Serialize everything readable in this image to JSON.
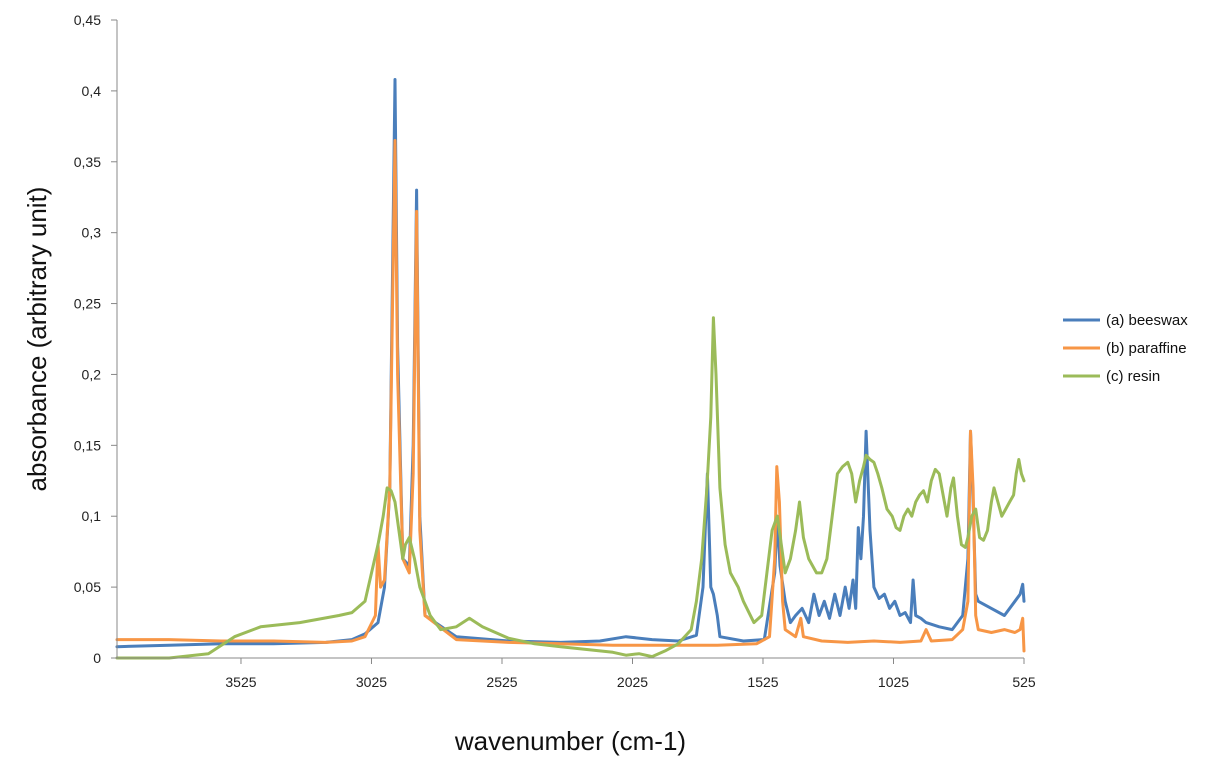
{
  "chart_data": {
    "type": "line",
    "xlabel": "wavenumber (cm-1)",
    "ylabel": "absorbance (arbitrary unit)",
    "xlim": [
      4000,
      525
    ],
    "x_reversed": true,
    "ylim": [
      0,
      0.45
    ],
    "grid": false,
    "legend_position": "right",
    "x_ticks": [
      3525,
      3025,
      2525,
      2025,
      1525,
      1025,
      525
    ],
    "y_ticks": [
      0,
      0.05,
      0.1,
      0.15,
      0.2,
      0.25,
      0.3,
      0.35,
      0.4,
      0.45
    ],
    "y_tick_labels": [
      "0",
      "0,05",
      "0,1",
      "0,15",
      "0,2",
      "0,25",
      "0,3",
      "0,35",
      "0,4",
      "0,45"
    ],
    "series": [
      {
        "name": "(a) beeswax",
        "color": "#4a7ebb",
        "points": [
          [
            4000,
            0.008
          ],
          [
            3800,
            0.009
          ],
          [
            3600,
            0.01
          ],
          [
            3400,
            0.01
          ],
          [
            3200,
            0.011
          ],
          [
            3100,
            0.013
          ],
          [
            3050,
            0.017
          ],
          [
            3000,
            0.025
          ],
          [
            2975,
            0.05
          ],
          [
            2955,
            0.12
          ],
          [
            2935,
            0.408
          ],
          [
            2925,
            0.22
          ],
          [
            2905,
            0.07
          ],
          [
            2880,
            0.065
          ],
          [
            2865,
            0.15
          ],
          [
            2852,
            0.33
          ],
          [
            2840,
            0.1
          ],
          [
            2820,
            0.03
          ],
          [
            2700,
            0.015
          ],
          [
            2500,
            0.012
          ],
          [
            2300,
            0.011
          ],
          [
            2150,
            0.012
          ],
          [
            2050,
            0.015
          ],
          [
            1950,
            0.013
          ],
          [
            1850,
            0.012
          ],
          [
            1780,
            0.016
          ],
          [
            1755,
            0.05
          ],
          [
            1738,
            0.13
          ],
          [
            1725,
            0.05
          ],
          [
            1715,
            0.045
          ],
          [
            1700,
            0.03
          ],
          [
            1690,
            0.015
          ],
          [
            1600,
            0.012
          ],
          [
            1520,
            0.013
          ],
          [
            1480,
            0.06
          ],
          [
            1470,
            0.1
          ],
          [
            1460,
            0.065
          ],
          [
            1440,
            0.04
          ],
          [
            1420,
            0.025
          ],
          [
            1400,
            0.03
          ],
          [
            1375,
            0.035
          ],
          [
            1350,
            0.025
          ],
          [
            1330,
            0.045
          ],
          [
            1310,
            0.03
          ],
          [
            1290,
            0.04
          ],
          [
            1270,
            0.028
          ],
          [
            1250,
            0.045
          ],
          [
            1230,
            0.03
          ],
          [
            1210,
            0.05
          ],
          [
            1195,
            0.035
          ],
          [
            1180,
            0.055
          ],
          [
            1170,
            0.035
          ],
          [
            1160,
            0.092
          ],
          [
            1150,
            0.07
          ],
          [
            1140,
            0.1
          ],
          [
            1130,
            0.16
          ],
          [
            1115,
            0.09
          ],
          [
            1100,
            0.05
          ],
          [
            1080,
            0.042
          ],
          [
            1060,
            0.045
          ],
          [
            1040,
            0.035
          ],
          [
            1020,
            0.04
          ],
          [
            1000,
            0.03
          ],
          [
            980,
            0.032
          ],
          [
            960,
            0.025
          ],
          [
            950,
            0.055
          ],
          [
            940,
            0.03
          ],
          [
            920,
            0.028
          ],
          [
            900,
            0.025
          ],
          [
            850,
            0.022
          ],
          [
            800,
            0.02
          ],
          [
            760,
            0.03
          ],
          [
            740,
            0.07
          ],
          [
            730,
            0.16
          ],
          [
            720,
            0.11
          ],
          [
            710,
            0.045
          ],
          [
            700,
            0.04
          ],
          [
            650,
            0.035
          ],
          [
            600,
            0.03
          ],
          [
            560,
            0.04
          ],
          [
            540,
            0.045
          ],
          [
            530,
            0.052
          ],
          [
            525,
            0.04
          ]
        ]
      },
      {
        "name": "(b) paraffine",
        "color": "#f79646",
        "points": [
          [
            4000,
            0.013
          ],
          [
            3800,
            0.013
          ],
          [
            3600,
            0.012
          ],
          [
            3400,
            0.012
          ],
          [
            3200,
            0.011
          ],
          [
            3100,
            0.012
          ],
          [
            3050,
            0.015
          ],
          [
            3010,
            0.03
          ],
          [
            3000,
            0.08
          ],
          [
            2990,
            0.05
          ],
          [
            2975,
            0.055
          ],
          [
            2955,
            0.12
          ],
          [
            2935,
            0.365
          ],
          [
            2925,
            0.2
          ],
          [
            2905,
            0.07
          ],
          [
            2880,
            0.06
          ],
          [
            2865,
            0.13
          ],
          [
            2852,
            0.315
          ],
          [
            2840,
            0.09
          ],
          [
            2820,
            0.03
          ],
          [
            2700,
            0.013
          ],
          [
            2500,
            0.011
          ],
          [
            2300,
            0.01
          ],
          [
            2100,
            0.009
          ],
          [
            1900,
            0.009
          ],
          [
            1700,
            0.009
          ],
          [
            1550,
            0.01
          ],
          [
            1500,
            0.015
          ],
          [
            1480,
            0.07
          ],
          [
            1472,
            0.135
          ],
          [
            1462,
            0.11
          ],
          [
            1450,
            0.04
          ],
          [
            1440,
            0.02
          ],
          [
            1400,
            0.015
          ],
          [
            1380,
            0.028
          ],
          [
            1370,
            0.015
          ],
          [
            1300,
            0.012
          ],
          [
            1200,
            0.011
          ],
          [
            1100,
            0.012
          ],
          [
            1000,
            0.011
          ],
          [
            920,
            0.012
          ],
          [
            900,
            0.02
          ],
          [
            880,
            0.012
          ],
          [
            800,
            0.013
          ],
          [
            760,
            0.02
          ],
          [
            740,
            0.04
          ],
          [
            730,
            0.16
          ],
          [
            720,
            0.12
          ],
          [
            710,
            0.03
          ],
          [
            700,
            0.02
          ],
          [
            650,
            0.018
          ],
          [
            600,
            0.02
          ],
          [
            560,
            0.018
          ],
          [
            540,
            0.02
          ],
          [
            530,
            0.028
          ],
          [
            525,
            0.005
          ]
        ]
      },
      {
        "name": "(c) resin",
        "color": "#9bbb59",
        "points": [
          [
            4000,
            0
          ],
          [
            3800,
            0
          ],
          [
            3650,
            0.003
          ],
          [
            3550,
            0.015
          ],
          [
            3450,
            0.022
          ],
          [
            3300,
            0.025
          ],
          [
            3150,
            0.03
          ],
          [
            3100,
            0.032
          ],
          [
            3050,
            0.04
          ],
          [
            3000,
            0.08
          ],
          [
            2980,
            0.1
          ],
          [
            2965,
            0.12
          ],
          [
            2950,
            0.118
          ],
          [
            2935,
            0.11
          ],
          [
            2920,
            0.09
          ],
          [
            2905,
            0.07
          ],
          [
            2895,
            0.08
          ],
          [
            2880,
            0.085
          ],
          [
            2860,
            0.07
          ],
          [
            2840,
            0.05
          ],
          [
            2800,
            0.03
          ],
          [
            2760,
            0.02
          ],
          [
            2700,
            0.022
          ],
          [
            2650,
            0.028
          ],
          [
            2600,
            0.022
          ],
          [
            2500,
            0.014
          ],
          [
            2400,
            0.01
          ],
          [
            2300,
            0.008
          ],
          [
            2200,
            0.006
          ],
          [
            2100,
            0.004
          ],
          [
            2050,
            0.002
          ],
          [
            2000,
            0.003
          ],
          [
            1950,
            0.001
          ],
          [
            1900,
            0.005
          ],
          [
            1850,
            0.01
          ],
          [
            1800,
            0.02
          ],
          [
            1780,
            0.04
          ],
          [
            1760,
            0.07
          ],
          [
            1740,
            0.12
          ],
          [
            1725,
            0.17
          ],
          [
            1715,
            0.24
          ],
          [
            1705,
            0.2
          ],
          [
            1690,
            0.12
          ],
          [
            1670,
            0.08
          ],
          [
            1650,
            0.06
          ],
          [
            1620,
            0.05
          ],
          [
            1600,
            0.04
          ],
          [
            1560,
            0.025
          ],
          [
            1530,
            0.03
          ],
          [
            1510,
            0.06
          ],
          [
            1490,
            0.09
          ],
          [
            1470,
            0.1
          ],
          [
            1455,
            0.08
          ],
          [
            1440,
            0.06
          ],
          [
            1420,
            0.07
          ],
          [
            1400,
            0.09
          ],
          [
            1385,
            0.11
          ],
          [
            1370,
            0.085
          ],
          [
            1350,
            0.07
          ],
          [
            1320,
            0.06
          ],
          [
            1300,
            0.06
          ],
          [
            1280,
            0.07
          ],
          [
            1260,
            0.1
          ],
          [
            1240,
            0.13
          ],
          [
            1220,
            0.135
          ],
          [
            1200,
            0.138
          ],
          [
            1185,
            0.13
          ],
          [
            1170,
            0.11
          ],
          [
            1155,
            0.125
          ],
          [
            1140,
            0.135
          ],
          [
            1130,
            0.143
          ],
          [
            1115,
            0.14
          ],
          [
            1100,
            0.138
          ],
          [
            1085,
            0.13
          ],
          [
            1070,
            0.12
          ],
          [
            1050,
            0.105
          ],
          [
            1030,
            0.1
          ],
          [
            1015,
            0.092
          ],
          [
            1000,
            0.09
          ],
          [
            985,
            0.1
          ],
          [
            970,
            0.105
          ],
          [
            955,
            0.1
          ],
          [
            940,
            0.11
          ],
          [
            925,
            0.115
          ],
          [
            910,
            0.118
          ],
          [
            895,
            0.11
          ],
          [
            880,
            0.125
          ],
          [
            865,
            0.133
          ],
          [
            850,
            0.13
          ],
          [
            835,
            0.115
          ],
          [
            820,
            0.1
          ],
          [
            805,
            0.12
          ],
          [
            795,
            0.127
          ],
          [
            780,
            0.1
          ],
          [
            765,
            0.08
          ],
          [
            750,
            0.078
          ],
          [
            740,
            0.085
          ],
          [
            725,
            0.1
          ],
          [
            710,
            0.105
          ],
          [
            695,
            0.085
          ],
          [
            680,
            0.083
          ],
          [
            665,
            0.09
          ],
          [
            650,
            0.11
          ],
          [
            640,
            0.12
          ],
          [
            625,
            0.11
          ],
          [
            610,
            0.1
          ],
          [
            595,
            0.105
          ],
          [
            580,
            0.11
          ],
          [
            565,
            0.115
          ],
          [
            555,
            0.13
          ],
          [
            545,
            0.14
          ],
          [
            535,
            0.13
          ],
          [
            525,
            0.125
          ]
        ]
      }
    ]
  }
}
